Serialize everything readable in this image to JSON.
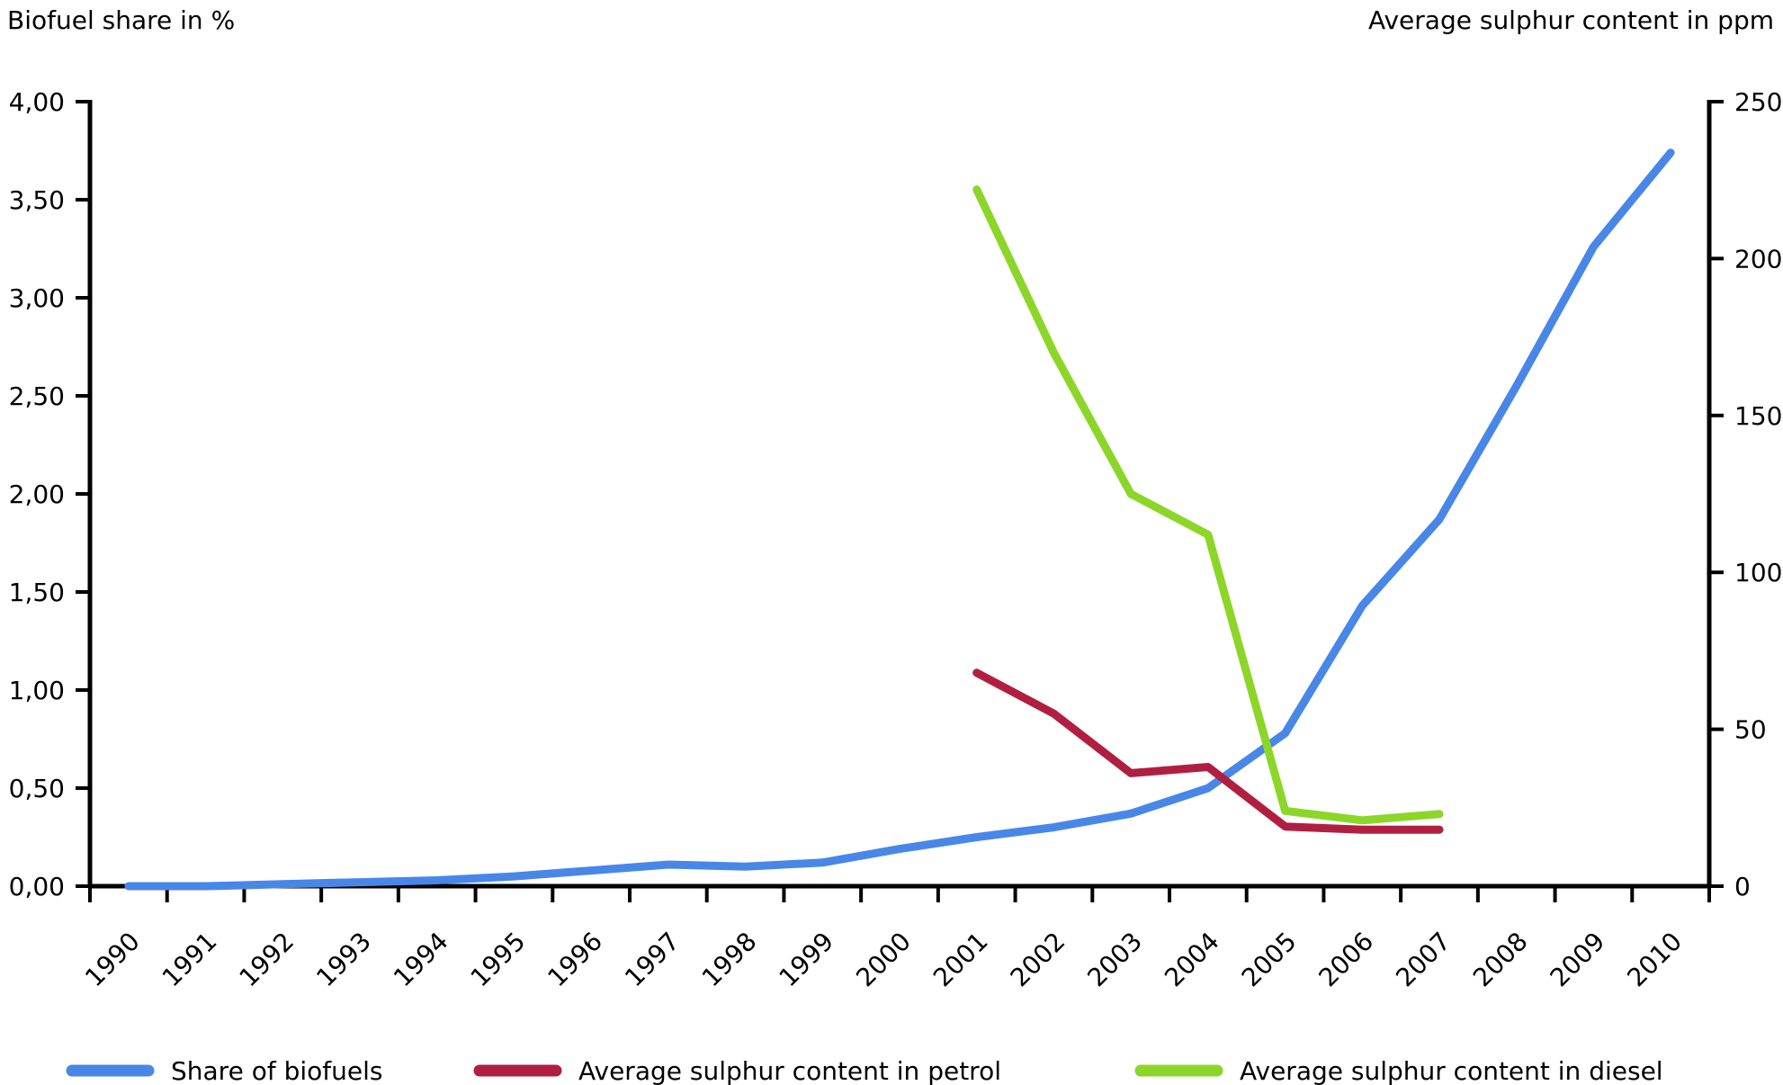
{
  "titles": {
    "left_axis_title": "Biofuel share in %",
    "right_axis_title": "Average sulphur content in ppm"
  },
  "chart_data": {
    "type": "line",
    "title": "",
    "x": [
      "1990",
      "1991",
      "1992",
      "1993",
      "1994",
      "1995",
      "1996",
      "1997",
      "1998",
      "1999",
      "2000",
      "2001",
      "2002",
      "2003",
      "2004",
      "2005",
      "2006",
      "2007",
      "2008",
      "2009",
      "2010"
    ],
    "left_axis": {
      "label": "Biofuel share in %",
      "range": [
        0,
        4
      ],
      "ticks": [
        {
          "value": 0.0,
          "label": "0,00"
        },
        {
          "value": 0.5,
          "label": "0,50"
        },
        {
          "value": 1.0,
          "label": "1,00"
        },
        {
          "value": 1.5,
          "label": "1,50"
        },
        {
          "value": 2.0,
          "label": "2,00"
        },
        {
          "value": 2.5,
          "label": "2,50"
        },
        {
          "value": 3.0,
          "label": "3,00"
        },
        {
          "value": 3.5,
          "label": "3,50"
        },
        {
          "value": 4.0,
          "label": "4,00"
        }
      ]
    },
    "right_axis": {
      "label": "Average sulphur content in ppm",
      "range": [
        0,
        250
      ],
      "ticks": [
        {
          "value": 0,
          "label": "0"
        },
        {
          "value": 50,
          "label": "50"
        },
        {
          "value": 100,
          "label": "100"
        },
        {
          "value": 150,
          "label": "150"
        },
        {
          "value": 200,
          "label": "200"
        },
        {
          "value": 250,
          "label": "250"
        }
      ]
    },
    "grid": false,
    "legend_position": "bottom",
    "series": [
      {
        "name": "Share of biofuels",
        "axis": "left",
        "color": "#4887E8",
        "x": [
          "1990",
          "1991",
          "1992",
          "1993",
          "1994",
          "1995",
          "1996",
          "1997",
          "1998",
          "1999",
          "2000",
          "2001",
          "2002",
          "2003",
          "2004",
          "2005",
          "2006",
          "2007",
          "2008",
          "2009",
          "2010"
        ],
        "values": [
          0.0,
          0.0,
          0.01,
          0.02,
          0.03,
          0.05,
          0.08,
          0.11,
          0.1,
          0.12,
          0.19,
          0.25,
          0.3,
          0.37,
          0.5,
          0.78,
          1.43,
          1.87,
          2.55,
          3.26,
          3.74
        ]
      },
      {
        "name": "Average sulphur content in petrol",
        "axis": "right",
        "color": "#B11F40",
        "x": [
          "2001",
          "2002",
          "2003",
          "2004",
          "2005",
          "2006",
          "2007"
        ],
        "values": [
          68,
          55,
          36,
          38,
          19,
          18,
          18
        ]
      },
      {
        "name": "Average sulphur content in diesel",
        "axis": "right",
        "color": "#8CD629",
        "x": [
          "2001",
          "2002",
          "2003",
          "2004",
          "2005",
          "2006",
          "2007"
        ],
        "values": [
          222,
          170,
          125,
          112,
          24,
          21,
          23
        ]
      }
    ]
  },
  "colors": {
    "axis": "#000000",
    "background": "#ffffff"
  }
}
